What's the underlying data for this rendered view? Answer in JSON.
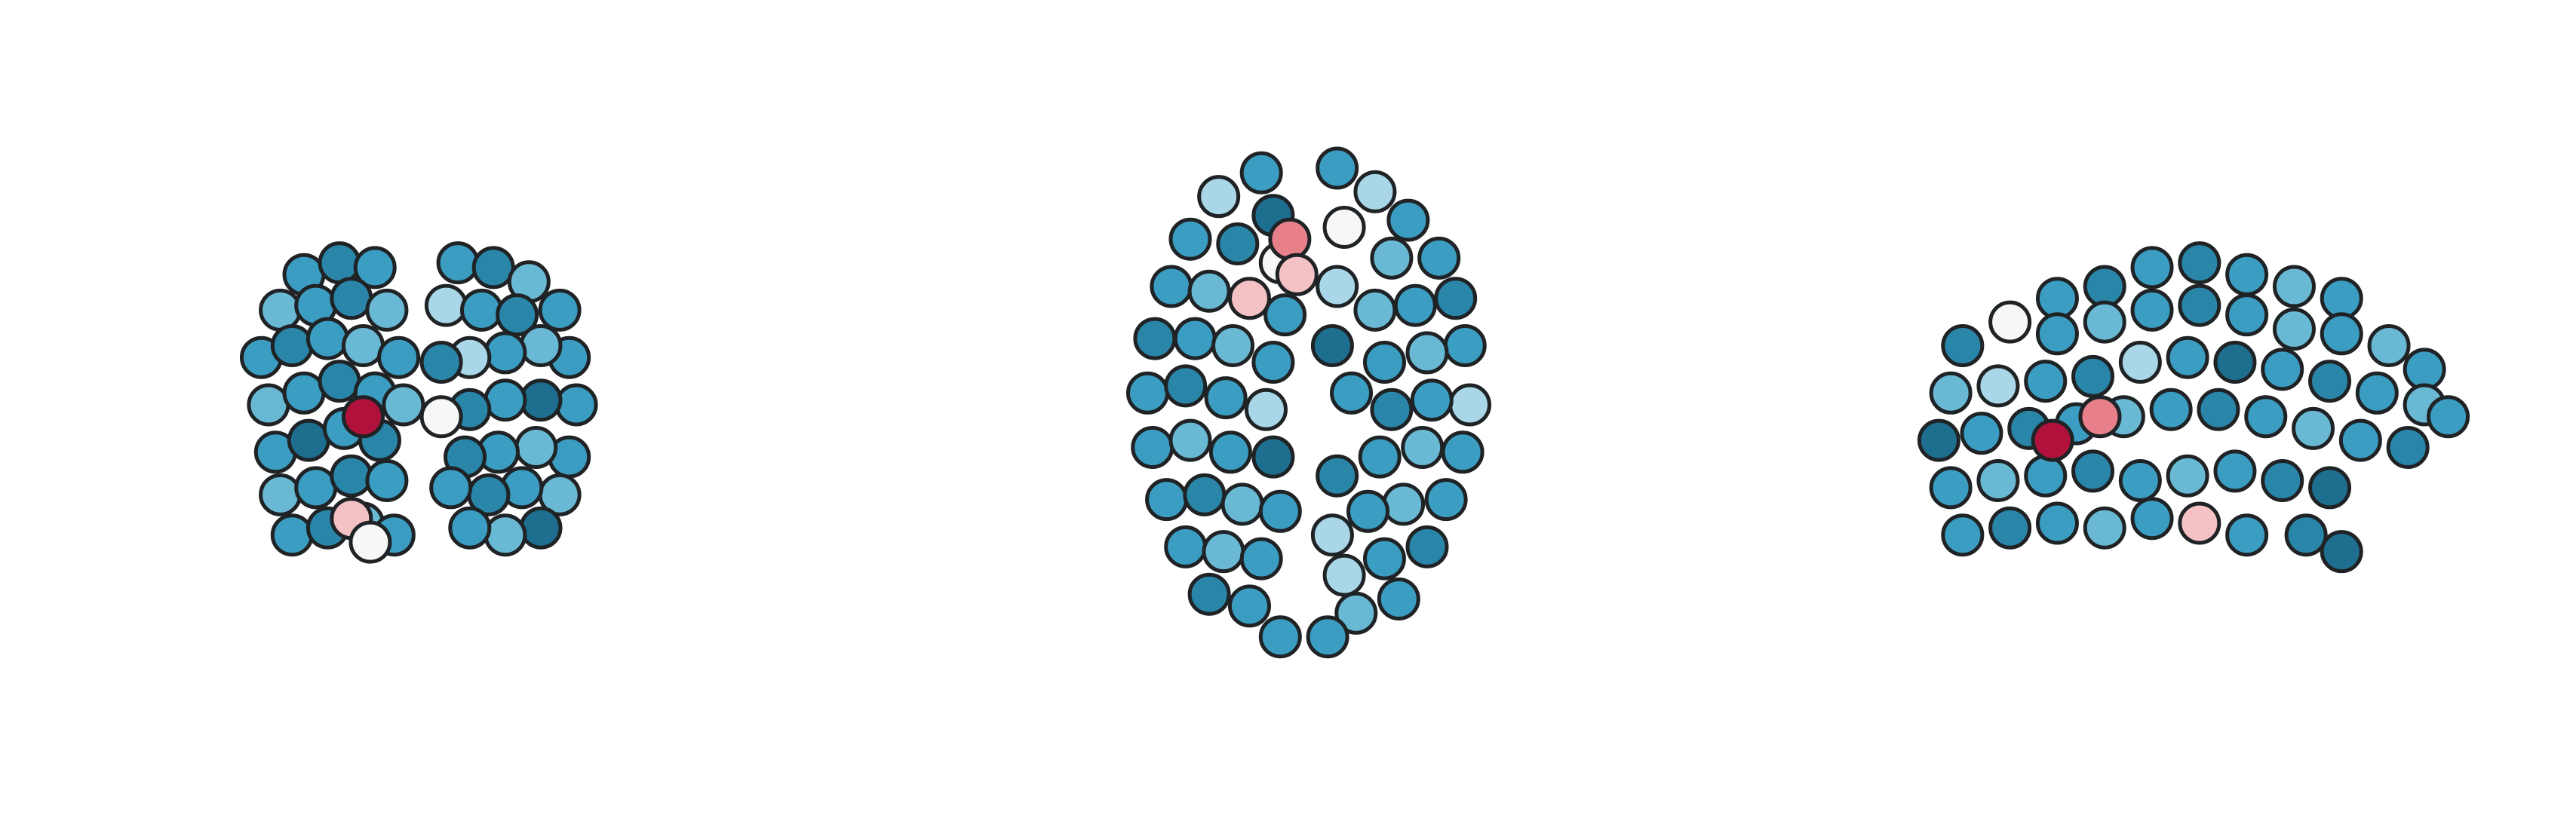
{
  "chart_data": [
    {
      "type": "scatter",
      "xlim": [
        -80,
        80
      ],
      "ylim": [
        -60,
        80
      ],
      "x": [
        -50,
        -35,
        -20,
        -60,
        -45,
        -30,
        -15,
        -68,
        -55,
        -40,
        -25,
        -10,
        -65,
        -50,
        -35,
        -20,
        -8,
        -62,
        -48,
        -33,
        -18,
        -60,
        -45,
        -30,
        -15,
        -55,
        -40,
        -25,
        -12,
        -25,
        -30,
        -22,
        15,
        30,
        45,
        58,
        10,
        25,
        40,
        62,
        50,
        35,
        20,
        8,
        65,
        50,
        35,
        20,
        8,
        62,
        48,
        32,
        18,
        58,
        42,
        28,
        12,
        50,
        35,
        20
      ],
      "values": [
        65,
        70,
        68,
        50,
        52,
        55,
        50,
        30,
        35,
        38,
        35,
        30,
        10,
        15,
        20,
        15,
        10,
        -10,
        -5,
        0,
        -5,
        -28,
        -25,
        -20,
        -22,
        -45,
        -42,
        -40,
        -45,
        5,
        -38,
        -48,
        70,
        68,
        62,
        50,
        52,
        50,
        48,
        30,
        35,
        32,
        30,
        28,
        10,
        12,
        12,
        8,
        5,
        -12,
        -8,
        -10,
        -12,
        -28,
        -25,
        -28,
        -25,
        -42,
        -45,
        -42
      ],
      "colors": [
        "#3b9dc1",
        "#2a86a9",
        "#3b9dc1",
        "#6ab9d4",
        "#3b9dc1",
        "#2a86a9",
        "#6ab9d4",
        "#3b9dc1",
        "#2a86a9",
        "#3b9dc1",
        "#6ab9d4",
        "#3b9dc1",
        "#6ab9d4",
        "#3b9dc1",
        "#2a86a9",
        "#3b9dc1",
        "#6ab9d4",
        "#3b9dc1",
        "#1e6f8f",
        "#3b9dc1",
        "#2a86a9",
        "#6ab9d4",
        "#3b9dc1",
        "#2a86a9",
        "#3b9dc1",
        "#3b9dc1",
        "#2a86a9",
        "#6ab9d4",
        "#3b9dc1",
        "#b0123b",
        "#f4c2c4",
        "#f7f7f7",
        "#3b9dc1",
        "#2a86a9",
        "#6ab9d4",
        "#3b9dc1",
        "#a9d7e7",
        "#3b9dc1",
        "#2a86a9",
        "#3b9dc1",
        "#6ab9d4",
        "#3b9dc1",
        "#a9d7e7",
        "#2a86a9",
        "#3b9dc1",
        "#1e6f8f",
        "#3b9dc1",
        "#2a86a9",
        "#f7f7f7",
        "#3b9dc1",
        "#6ab9d4",
        "#3b9dc1",
        "#2a86a9",
        "#6ab9d4",
        "#3b9dc1",
        "#2a86a9",
        "#3b9dc1",
        "#1e6f8f",
        "#6ab9d4",
        "#3b9dc1"
      ]
    },
    {
      "type": "scatter",
      "xlim": [
        -80,
        80
      ],
      "ylim": [
        -112,
        112
      ],
      "x": [
        -20,
        -38,
        -15,
        -50,
        -30,
        -12,
        -58,
        -42,
        -25,
        -10,
        -65,
        -48,
        -32,
        -15,
        -68,
        -52,
        -35,
        -18,
        -66,
        -50,
        -33,
        -15,
        -60,
        -44,
        -28,
        -12,
        -52,
        -36,
        -20,
        -42,
        -25,
        -12,
        12,
        28,
        42,
        15,
        55,
        35,
        12,
        62,
        45,
        28,
        10,
        66,
        50,
        32,
        68,
        52,
        35,
        18,
        65,
        48,
        30,
        12,
        58,
        40,
        25,
        10,
        50,
        32,
        15,
        38,
        20,
        8,
        -8,
        -5
      ],
      "values": [
        98,
        88,
        80,
        70,
        68,
        60,
        50,
        48,
        45,
        38,
        28,
        28,
        25,
        18,
        5,
        8,
        3,
        -2,
        -18,
        -15,
        -20,
        -22,
        -40,
        -38,
        -42,
        -45,
        -60,
        -62,
        -65,
        -80,
        -85,
        -98,
        100,
        90,
        78,
        75,
        62,
        62,
        50,
        45,
        42,
        40,
        25,
        25,
        22,
        18,
        0,
        2,
        -2,
        5,
        -20,
        -18,
        -22,
        -30,
        -40,
        -42,
        -45,
        -55,
        -60,
        -65,
        -72,
        -82,
        -88,
        -98,
        70,
        55
      ],
      "colors": [
        "#3b9dc1",
        "#a9d7e7",
        "#1e6f8f",
        "#3b9dc1",
        "#2a86a9",
        "#f7f7f7",
        "#3b9dc1",
        "#6ab9d4",
        "#f4c2c4",
        "#3b9dc1",
        "#2a86a9",
        "#3b9dc1",
        "#6ab9d4",
        "#3b9dc1",
        "#3b9dc1",
        "#2a86a9",
        "#3b9dc1",
        "#a9d7e7",
        "#3b9dc1",
        "#6ab9d4",
        "#3b9dc1",
        "#1e6f8f",
        "#3b9dc1",
        "#2a86a9",
        "#6ab9d4",
        "#3b9dc1",
        "#3b9dc1",
        "#6ab9d4",
        "#3b9dc1",
        "#2a86a9",
        "#3b9dc1",
        "#3b9dc1",
        "#3b9dc1",
        "#a9d7e7",
        "#3b9dc1",
        "#f7f7f7",
        "#3b9dc1",
        "#6ab9d4",
        "#a9d7e7",
        "#2a86a9",
        "#3b9dc1",
        "#6ab9d4",
        "#1e6f8f",
        "#3b9dc1",
        "#6ab9d4",
        "#3b9dc1",
        "#a9d7e7",
        "#3b9dc1",
        "#2a86a9",
        "#3b9dc1",
        "#3b9dc1",
        "#6ab9d4",
        "#3b9dc1",
        "#2a86a9",
        "#3b9dc1",
        "#6ab9d4",
        "#3b9dc1",
        "#a9d7e7",
        "#2a86a9",
        "#3b9dc1",
        "#a9d7e7",
        "#3b9dc1",
        "#6ab9d4",
        "#3b9dc1",
        "#e8808a",
        "#f4c2c4"
      ]
    },
    {
      "type": "scatter",
      "xlim": [
        -120,
        115
      ],
      "ylim": [
        -60,
        80
      ],
      "x": [
        -20,
        0,
        20,
        40,
        60,
        -40,
        -60,
        -80,
        -100,
        -60,
        -40,
        -20,
        0,
        20,
        40,
        60,
        80,
        95,
        -105,
        -85,
        -65,
        -45,
        -25,
        -5,
        15,
        35,
        55,
        75,
        95,
        105,
        -110,
        -92,
        -72,
        -52,
        -32,
        -12,
        8,
        28,
        48,
        68,
        88,
        -105,
        -85,
        -65,
        -45,
        -25,
        -5,
        15,
        35,
        55,
        -100,
        -80,
        -60,
        -40,
        -20,
        0,
        20,
        45,
        60,
        -62,
        -42
      ],
      "values": [
        68,
        70,
        65,
        60,
        55,
        60,
        55,
        45,
        35,
        40,
        45,
        50,
        52,
        48,
        42,
        40,
        35,
        25,
        15,
        18,
        20,
        22,
        28,
        30,
        28,
        25,
        20,
        15,
        10,
        5,
        -5,
        -2,
        0,
        2,
        5,
        8,
        8,
        5,
        0,
        -5,
        -8,
        -25,
        -22,
        -20,
        -18,
        -22,
        -20,
        -18,
        -22,
        -25,
        -45,
        -42,
        -40,
        -42,
        -38,
        -40,
        -45,
        -45,
        -52,
        -5,
        5
      ],
      "colors": [
        "#3b9dc1",
        "#2a86a9",
        "#3b9dc1",
        "#6ab9d4",
        "#3b9dc1",
        "#2a86a9",
        "#3b9dc1",
        "#f7f7f7",
        "#2a86a9",
        "#3b9dc1",
        "#6ab9d4",
        "#3b9dc1",
        "#2a86a9",
        "#3b9dc1",
        "#6ab9d4",
        "#3b9dc1",
        "#6ab9d4",
        "#3b9dc1",
        "#6ab9d4",
        "#a9d7e7",
        "#3b9dc1",
        "#2a86a9",
        "#a9d7e7",
        "#3b9dc1",
        "#1e6f8f",
        "#3b9dc1",
        "#2a86a9",
        "#3b9dc1",
        "#6ab9d4",
        "#3b9dc1",
        "#1e6f8f",
        "#3b9dc1",
        "#2a86a9",
        "#3b9dc1",
        "#6ab9d4",
        "#3b9dc1",
        "#2a86a9",
        "#3b9dc1",
        "#6ab9d4",
        "#3b9dc1",
        "#2a86a9",
        "#3b9dc1",
        "#6ab9d4",
        "#3b9dc1",
        "#2a86a9",
        "#3b9dc1",
        "#6ab9d4",
        "#3b9dc1",
        "#2a86a9",
        "#1e6f8f",
        "#3b9dc1",
        "#2a86a9",
        "#3b9dc1",
        "#6ab9d4",
        "#3b9dc1",
        "#f4c2c4",
        "#3b9dc1",
        "#2a86a9",
        "#1e6f8f",
        "#b0123b",
        "#e8808a"
      ]
    }
  ]
}
